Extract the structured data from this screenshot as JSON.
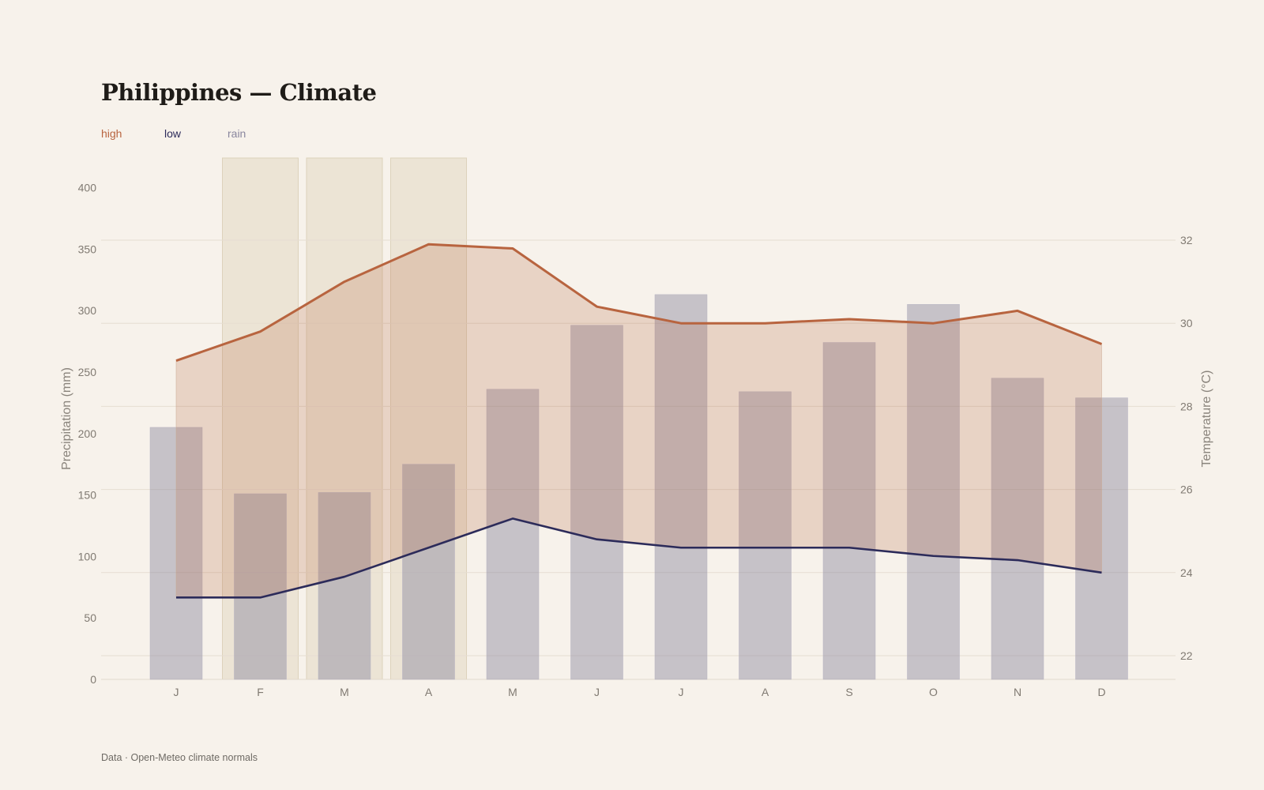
{
  "title": "Philippines — Climate",
  "legend": {
    "high": "high",
    "low": "low",
    "rain": "rain"
  },
  "source": "Data · Open-Meteo climate normals",
  "colors": {
    "background": "#f7f2eb",
    "high": "#b8643f",
    "low": "#2c2b5a",
    "rain": "#8a879e",
    "band": "#b8643f",
    "highlight": "#e3d9c3"
  },
  "chart_data": {
    "type": "bar",
    "categories": [
      "J",
      "F",
      "M",
      "A",
      "M",
      "J",
      "J",
      "A",
      "S",
      "O",
      "N",
      "D"
    ],
    "series": [
      {
        "name": "rain",
        "type": "bar",
        "axis": "left",
        "values": [
          205,
          151,
          152,
          175,
          236,
          288,
          313,
          234,
          274,
          305,
          245,
          229
        ]
      },
      {
        "name": "high",
        "type": "line",
        "axis": "right",
        "values": [
          29.1,
          29.8,
          31.0,
          31.9,
          31.8,
          30.4,
          30.0,
          30.0,
          30.1,
          30.0,
          30.3,
          29.5
        ]
      },
      {
        "name": "low",
        "type": "line",
        "axis": "right",
        "values": [
          23.4,
          23.4,
          23.9,
          24.6,
          25.3,
          24.8,
          24.6,
          24.6,
          24.6,
          24.4,
          24.3,
          24.0
        ]
      }
    ],
    "highlight_months": [
      1,
      2,
      3
    ],
    "ylabel": "Precipitation (mm)",
    "ylim": [
      0,
      400
    ],
    "yticks": [
      0,
      50,
      100,
      150,
      200,
      250,
      300,
      350,
      400
    ],
    "y2label": "Temperature (°C)",
    "y2lim": [
      21.4,
      33.4
    ],
    "y2ticks": [
      22,
      24,
      26,
      28,
      30,
      32
    ],
    "grid": true,
    "legend_position": "top-left"
  }
}
